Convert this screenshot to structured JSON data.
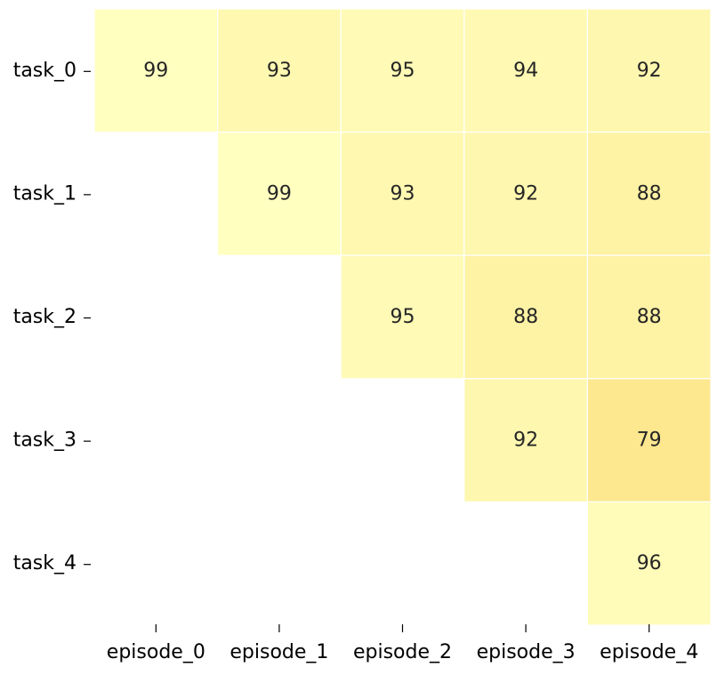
{
  "chart_data": {
    "type": "heatmap",
    "title": "",
    "xlabel": "",
    "ylabel": "",
    "x_categories": [
      "episode_0",
      "episode_1",
      "episode_2",
      "episode_3",
      "episode_4"
    ],
    "y_categories": [
      "task_0",
      "task_1",
      "task_2",
      "task_3",
      "task_4"
    ],
    "values": [
      [
        99,
        93,
        95,
        94,
        92
      ],
      [
        null,
        99,
        93,
        92,
        88
      ],
      [
        null,
        null,
        95,
        88,
        88
      ],
      [
        null,
        null,
        null,
        92,
        79
      ],
      [
        null,
        null,
        null,
        null,
        96
      ]
    ],
    "masked": "lower-triangle",
    "colormap": {
      "low": "#fde78f",
      "high": "#ffffc0"
    },
    "color_range": [
      79,
      99
    ],
    "grid": false,
    "legend": "none"
  }
}
